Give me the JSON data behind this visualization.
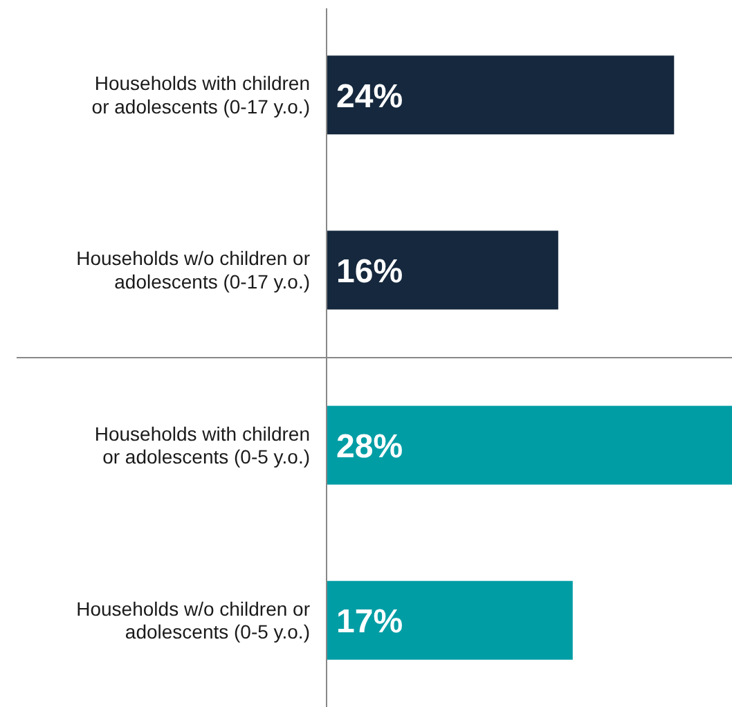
{
  "chart_data": {
    "type": "bar",
    "orientation": "horizontal",
    "categories": [
      "Households with children or adolescents (0-17 y.o.)",
      "Households w/o children or adolescents (0-17 y.o.)",
      "Households with children or adolescents (0-5 y.o.)",
      "Households w/o children or adolescents (0-5 y.o.)"
    ],
    "values": [
      24,
      16,
      28,
      17
    ],
    "value_labels": [
      "24%",
      "16%",
      "28%",
      "17%"
    ],
    "colors": [
      "#15283d",
      "#15283d",
      "#009da5",
      "#009da5"
    ],
    "xlim": [
      0,
      28
    ],
    "tick_labels": "y"
  }
}
